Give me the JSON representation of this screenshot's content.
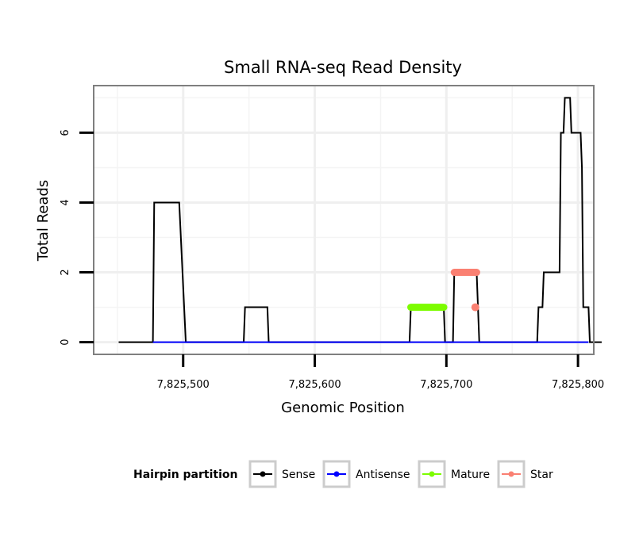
{
  "chart_data": {
    "type": "line",
    "title": "Small RNA-seq Read Density",
    "xlabel": "Genomic Position",
    "ylabel": "Total Reads",
    "xlim": [
      7825432,
      7825812
    ],
    "ylim": [
      -0.35,
      7.35
    ],
    "x_ticks": [
      7825500,
      7825600,
      7825700,
      7825800
    ],
    "x_tick_labels": [
      "7,825,500",
      "7,825,600",
      "7,825,700",
      "7,825,800"
    ],
    "y_ticks": [
      0,
      2,
      4,
      6
    ],
    "y_tick_labels": [
      "0",
      "2",
      "4",
      "6"
    ],
    "grid": true,
    "legend": {
      "title": "Hairpin partition",
      "position": "bottom",
      "entries": [
        {
          "name": "Sense",
          "color": "#000000"
        },
        {
          "name": "Antisense",
          "color": "#0000ff"
        },
        {
          "name": "Mature",
          "color": "#7cfc00"
        },
        {
          "name": "Star",
          "color": "#fa8072"
        }
      ]
    },
    "series": [
      {
        "name": "Sense",
        "color": "#000000",
        "style": "line",
        "points": [
          [
            7825451,
            0
          ],
          [
            7825477,
            0
          ],
          [
            7825478,
            4
          ],
          [
            7825497,
            4
          ],
          [
            7825502,
            0
          ],
          [
            7825546,
            0
          ],
          [
            7825547,
            1
          ],
          [
            7825564,
            1
          ],
          [
            7825565,
            0
          ],
          [
            7825672,
            0
          ],
          [
            7825673,
            1
          ],
          [
            7825698,
            1
          ],
          [
            7825699,
            0
          ],
          [
            7825705,
            0
          ],
          [
            7825706,
            2
          ],
          [
            7825723,
            2
          ],
          [
            7825725,
            0
          ],
          [
            7825769,
            0
          ],
          [
            7825770,
            1
          ],
          [
            7825773,
            1
          ],
          [
            7825774,
            2
          ],
          [
            7825786,
            2
          ],
          [
            7825787,
            6
          ],
          [
            7825789,
            6
          ],
          [
            7825790,
            7
          ],
          [
            7825794,
            7
          ],
          [
            7825795,
            6
          ],
          [
            7825802,
            6
          ],
          [
            7825803,
            5
          ],
          [
            7825804,
            1
          ],
          [
            7825808,
            1
          ],
          [
            7825809,
            0
          ],
          [
            7825818,
            0
          ]
        ]
      },
      {
        "name": "Antisense",
        "color": "#0000ff",
        "style": "line",
        "points": [
          [
            7825477,
            0
          ],
          [
            7825808,
            0
          ]
        ]
      },
      {
        "name": "Mature",
        "color": "#7cfc00",
        "style": "segment",
        "points": [
          [
            7825673,
            1
          ],
          [
            7825698,
            1
          ]
        ]
      },
      {
        "name": "Star",
        "color": "#fa8072",
        "style": "segment",
        "points": [
          [
            7825706,
            2
          ],
          [
            7825723,
            2
          ]
        ]
      },
      {
        "name": "Star",
        "color": "#fa8072",
        "style": "point",
        "points": [
          [
            7825722,
            1
          ]
        ]
      }
    ]
  }
}
